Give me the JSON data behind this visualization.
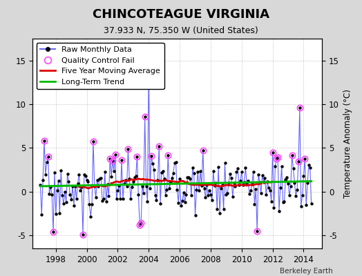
{
  "title": "CHINCOTEAGUE VIRGINIA",
  "subtitle": "37.933 N, 75.350 W (United States)",
  "ylabel_right": "Temperature Anomaly (°C)",
  "credit": "Berkeley Earth",
  "xlim": [
    1996.5,
    2015.2
  ],
  "ylim": [
    -6.5,
    17.5
  ],
  "yticks_left": [
    -5,
    0,
    5,
    10,
    15
  ],
  "yticks_right": [
    -5,
    0,
    5,
    10,
    15
  ],
  "xticks": [
    1998,
    2000,
    2002,
    2004,
    2006,
    2008,
    2010,
    2012,
    2014
  ],
  "background_color": "#d8d8d8",
  "plot_bg_color": "#ffffff",
  "raw_line_color": "#6666ff",
  "raw_marker_color": "#000000",
  "ma_color": "#dd0000",
  "trend_color": "#00bb00",
  "qc_color": "#ff44ff",
  "title_fontsize": 13,
  "subtitle_fontsize": 9,
  "legend_fontsize": 8
}
